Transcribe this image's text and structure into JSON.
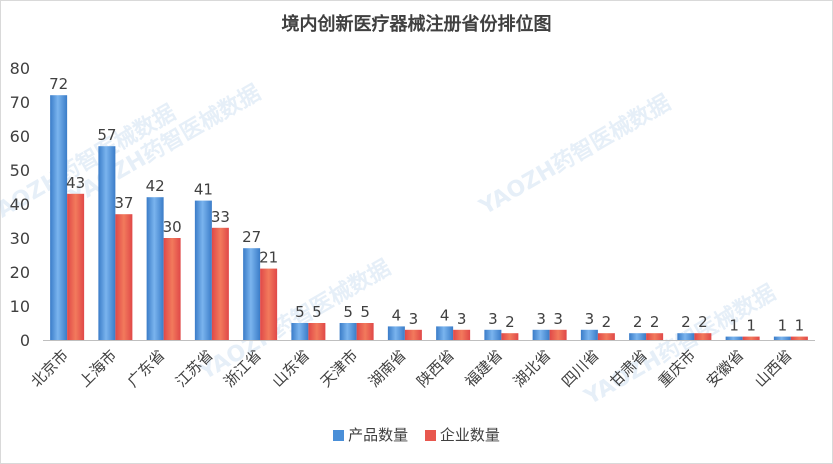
{
  "chart_data": {
    "type": "bar",
    "title": "境内创新医疗器械注册省份排位图",
    "categories": [
      "北京市",
      "上海市",
      "广东省",
      "江苏省",
      "浙江省",
      "山东省",
      "天津市",
      "湖南省",
      "陕西省",
      "福建省",
      "湖北省",
      "四川省",
      "甘肃省",
      "重庆市",
      "安徽省",
      "山西省"
    ],
    "series": [
      {
        "name": "产品数量",
        "values": [
          72,
          57,
          42,
          41,
          27,
          5,
          5,
          4,
          4,
          3,
          3,
          3,
          2,
          2,
          1,
          1
        ],
        "color": "#4a8fd8"
      },
      {
        "name": "企业数量",
        "values": [
          43,
          37,
          30,
          33,
          21,
          5,
          5,
          3,
          3,
          2,
          3,
          2,
          2,
          2,
          1,
          1
        ],
        "color": "#e8574e"
      }
    ],
    "ylim": [
      0,
      80
    ],
    "yticks": [
      "0",
      "10",
      "20",
      "30",
      "40",
      "50",
      "60",
      "70",
      "80"
    ],
    "grid": false,
    "legend": "bottom",
    "watermark": "YAOZH药智医械数据"
  }
}
